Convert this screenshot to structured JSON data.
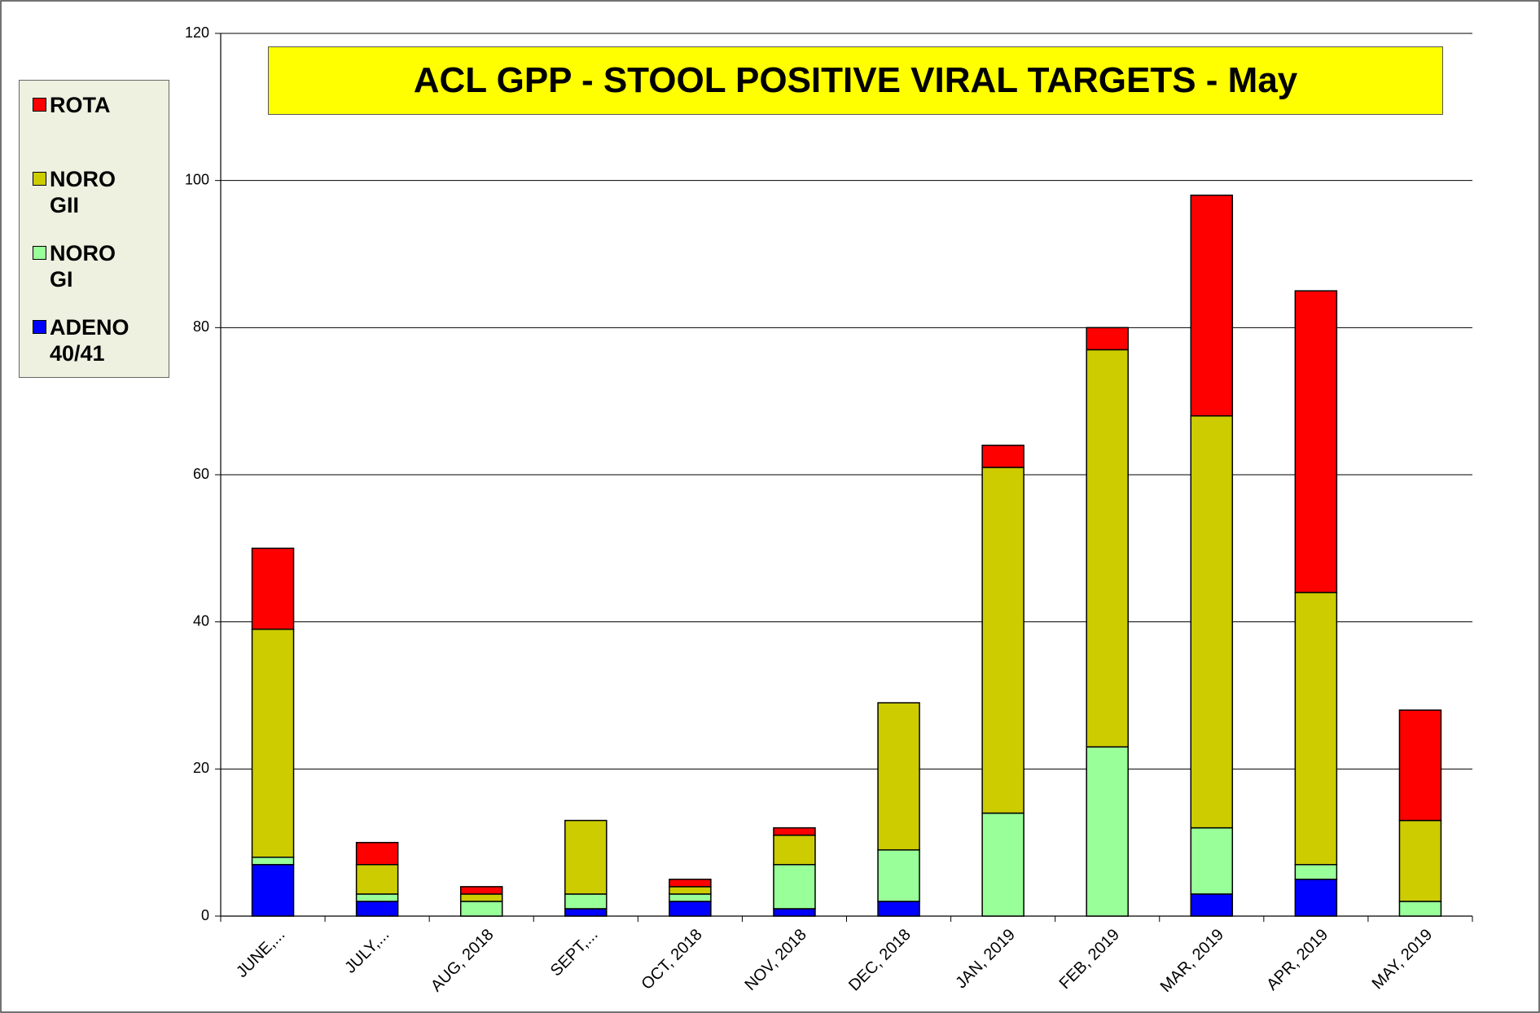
{
  "chart_data": {
    "type": "stacked_bar",
    "title": "ACL GPP - STOOL POSITIVE VIRAL TARGETS - May",
    "categories": [
      "JUNE,...",
      "JULY,...",
      "AUG, 2018",
      "SEPT,...",
      "OCT, 2018",
      "NOV, 2018",
      "DEC, 2018",
      "JAN, 2019",
      "FEB, 2019",
      "MAR, 2019",
      "APR, 2019",
      "MAY, 2019"
    ],
    "series": [
      {
        "name": "ADENO 40/41",
        "color": "#0000ff",
        "values": [
          7,
          2,
          0,
          1,
          2,
          1,
          2,
          0,
          0,
          3,
          5,
          0
        ]
      },
      {
        "name": "NORO GI",
        "color": "#99ff99",
        "values": [
          1,
          1,
          2,
          2,
          1,
          6,
          7,
          14,
          23,
          9,
          2,
          2
        ]
      },
      {
        "name": "NORO GII",
        "color": "#cccc00",
        "values": [
          31,
          4,
          1,
          10,
          1,
          4,
          20,
          47,
          54,
          56,
          37,
          11
        ]
      },
      {
        "name": "ROTA",
        "color": "#ff0000",
        "values": [
          11,
          3,
          1,
          0,
          1,
          1,
          0,
          3,
          3,
          30,
          41,
          15
        ]
      }
    ],
    "ylim": [
      0,
      120
    ],
    "yticks": [
      0,
      20,
      40,
      60,
      80,
      100,
      120
    ],
    "grid": true
  }
}
